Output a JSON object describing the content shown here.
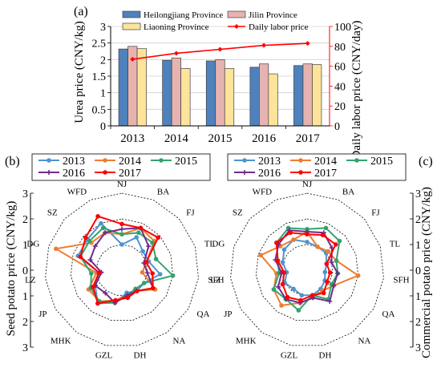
{
  "chart_data": [
    {
      "panel": "(a)",
      "type": "bar",
      "categories": [
        "2013",
        "2014",
        "2015",
        "2016",
        "2017"
      ],
      "series": [
        {
          "name": "Heilongjiang Province",
          "values": [
            2.32,
            1.98,
            1.96,
            1.77,
            1.82
          ],
          "color": "#4f81bd"
        },
        {
          "name": "Jilin Province",
          "values": [
            2.4,
            2.05,
            2.0,
            1.87,
            1.87
          ],
          "color": "#e6b3b1"
        },
        {
          "name": "Liaoning Province",
          "values": [
            2.33,
            1.73,
            1.73,
            1.57,
            1.85
          ],
          "color": "#fde49a"
        }
      ],
      "line_series": {
        "name": "Daily labor price",
        "values": [
          67,
          73,
          77,
          81,
          83
        ],
        "color": "#ff0000"
      },
      "ylabel": "Urea price (CNY/kg)",
      "y2label": "Daily labor price (CNY/day)",
      "ylim": [
        0,
        3
      ],
      "y_ticks": [
        "0",
        "0.5",
        "1",
        "1.5",
        "2",
        "2.5",
        "3"
      ],
      "y2lim": [
        0,
        100
      ],
      "y2_ticks": [
        "0",
        "20",
        "40",
        "60",
        "80",
        "100"
      ],
      "legend": "top"
    },
    {
      "panel": "(b)",
      "type": "radar",
      "categories": [
        "NJ",
        "BA",
        "FJ",
        "TL",
        "SFH",
        "QA",
        "NA",
        "DH",
        "GZL",
        "MHK",
        "JP",
        "LZ",
        "DG",
        "SZ",
        "WFD"
      ],
      "axis_label": "Seed potato price (CNY/kg)",
      "axis_ticks": [
        "3",
        "2",
        "1",
        "0",
        "1",
        "2",
        "3"
      ],
      "rlim": [
        0,
        3
      ],
      "series": [
        {
          "name": "2013",
          "values": [
            1.0,
            1.4,
            1.1,
            1.1,
            1.5,
            1.0,
            1.0,
            0.9,
            1.3,
            1.6,
            1.2,
            0.9,
            1.8,
            1.8,
            2.0
          ]
        },
        {
          "name": "2014",
          "values": [
            1.4,
            1.8,
            1.7,
            1.0,
            0.8,
            1.5,
            1.0,
            1.0,
            1.2,
            1.5,
            1.5,
            1.0,
            2.7,
            1.6,
            1.6
          ]
        },
        {
          "name": "2015",
          "values": [
            1.4,
            1.6,
            1.6,
            1.4,
            2.0,
            1.0,
            0.9,
            1.0,
            1.3,
            1.5,
            1.4,
            1.2,
            1.7,
            1.7,
            1.8
          ]
        },
        {
          "name": "2016",
          "values": [
            1.6,
            1.8,
            1.4,
            0.9,
            1.0,
            1.4,
            1.0,
            1.0,
            1.3,
            1.1,
            1.2,
            0.8,
            1.3,
            1.4,
            1.6
          ]
        },
        {
          "name": "2017",
          "values": [
            1.8,
            1.8,
            1.9,
            1.0,
            1.2,
            1.4,
            1.0,
            1.1,
            1.2,
            1.6,
            1.3,
            0.9,
            1.7,
            1.9,
            2.3
          ]
        }
      ],
      "legend": "top"
    },
    {
      "panel": "(c)",
      "type": "radar",
      "categories": [
        "NJ",
        "BA",
        "FJ",
        "TL",
        "SFH",
        "QA",
        "NA",
        "DH",
        "GZL",
        "MHK",
        "JP",
        "LZ",
        "DG",
        "SZ",
        "WFD"
      ],
      "axis_label": "Commercial potato price (CNY/kg)",
      "axis_ticks": [
        "3",
        "2",
        "1",
        "0",
        "1",
        "2",
        "3"
      ],
      "rlim": [
        0,
        3
      ],
      "series": [
        {
          "name": "2013",
          "values": [
            1.1,
            1.0,
            1.0,
            0.8,
            0.7,
            0.8,
            0.9,
            1.0,
            1.0,
            0.9,
            1.0,
            0.8,
            1.0,
            1.2,
            1.3
          ]
        },
        {
          "name": "2014",
          "values": [
            1.5,
            1.0,
            1.1,
            1.2,
            2.0,
            1.2,
            1.0,
            1.1,
            1.3,
            1.7,
            1.5,
            1.2,
            1.9,
            1.4,
            1.3
          ]
        },
        {
          "name": "2015",
          "values": [
            1.6,
            1.8,
            1.7,
            1.2,
            1.2,
            1.1,
            1.4,
            1.0,
            1.6,
            1.4,
            1.5,
            1.1,
            1.2,
            1.6,
            1.8
          ]
        },
        {
          "name": "2016",
          "values": [
            1.5,
            1.6,
            1.3,
            1.0,
            1.2,
            1.2,
            1.5,
            1.1,
            1.3,
            1.4,
            1.3,
            1.0,
            1.3,
            1.5,
            1.7
          ]
        },
        {
          "name": "2017",
          "values": [
            1.4,
            1.5,
            1.5,
            0.8,
            0.9,
            0.9,
            1.1,
            1.0,
            1.2,
            1.3,
            1.1,
            0.9,
            1.2,
            1.6,
            1.6
          ]
        }
      ],
      "legend": "top"
    }
  ],
  "radar_series_style": [
    {
      "color": "#4e94ce",
      "marker": "circle"
    },
    {
      "color": "#ed7d31",
      "marker": "circle"
    },
    {
      "color": "#33a36d",
      "marker": "circle"
    },
    {
      "color": "#702c8c",
      "marker": "plus"
    },
    {
      "color": "#ff0000",
      "marker": "circle"
    }
  ]
}
